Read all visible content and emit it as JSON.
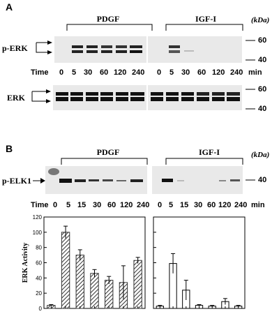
{
  "figure": {
    "panel_a_label": "A",
    "panel_b_label": "B",
    "kda_label": "(kDa)",
    "time_label": "Time",
    "min_label": "min"
  },
  "panel_a": {
    "groups": [
      "PDGF",
      "IGF-I"
    ],
    "blot1_label": "p-ERK",
    "blot2_label": "ERK",
    "times_pdgf": [
      "0",
      "5",
      "30",
      "60",
      "120",
      "240"
    ],
    "times_igf": [
      "0",
      "5",
      "30",
      "60",
      "120",
      "240"
    ],
    "markers": [
      "60",
      "40"
    ]
  },
  "panel_b": {
    "groups": [
      "PDGF",
      "IGF-I"
    ],
    "blot_label": "p-ELK1",
    "times_pdgf": [
      "0",
      "5",
      "15",
      "30",
      "60",
      "120",
      "240"
    ],
    "times_igf": [
      "0",
      "5",
      "15",
      "30",
      "60",
      "120",
      "240"
    ],
    "marker": "40"
  },
  "chart_data": [
    {
      "type": "bar",
      "panel": "PDGF",
      "ylabel": "ERK Activity",
      "ylim": [
        0,
        120
      ],
      "yticks": [
        "0",
        "20",
        "40",
        "60",
        "80",
        "100",
        "120"
      ],
      "categories": [
        "0",
        "5",
        "15",
        "30",
        "60",
        "120",
        "240"
      ],
      "values": [
        4,
        100,
        70,
        46,
        37,
        34,
        63
      ],
      "errors": [
        1,
        8,
        7,
        5,
        5,
        22,
        4
      ],
      "fill": "hatched",
      "color": "#333333"
    },
    {
      "type": "bar",
      "panel": "IGF-I",
      "ylim": [
        0,
        120
      ],
      "categories": [
        "0",
        "5",
        "15",
        "30",
        "60",
        "120",
        "240"
      ],
      "values": [
        3,
        59,
        24,
        4,
        3,
        9,
        3
      ],
      "errors": [
        1,
        13,
        13,
        1,
        1,
        4,
        1
      ],
      "fill": "open",
      "color": "#000000"
    }
  ]
}
